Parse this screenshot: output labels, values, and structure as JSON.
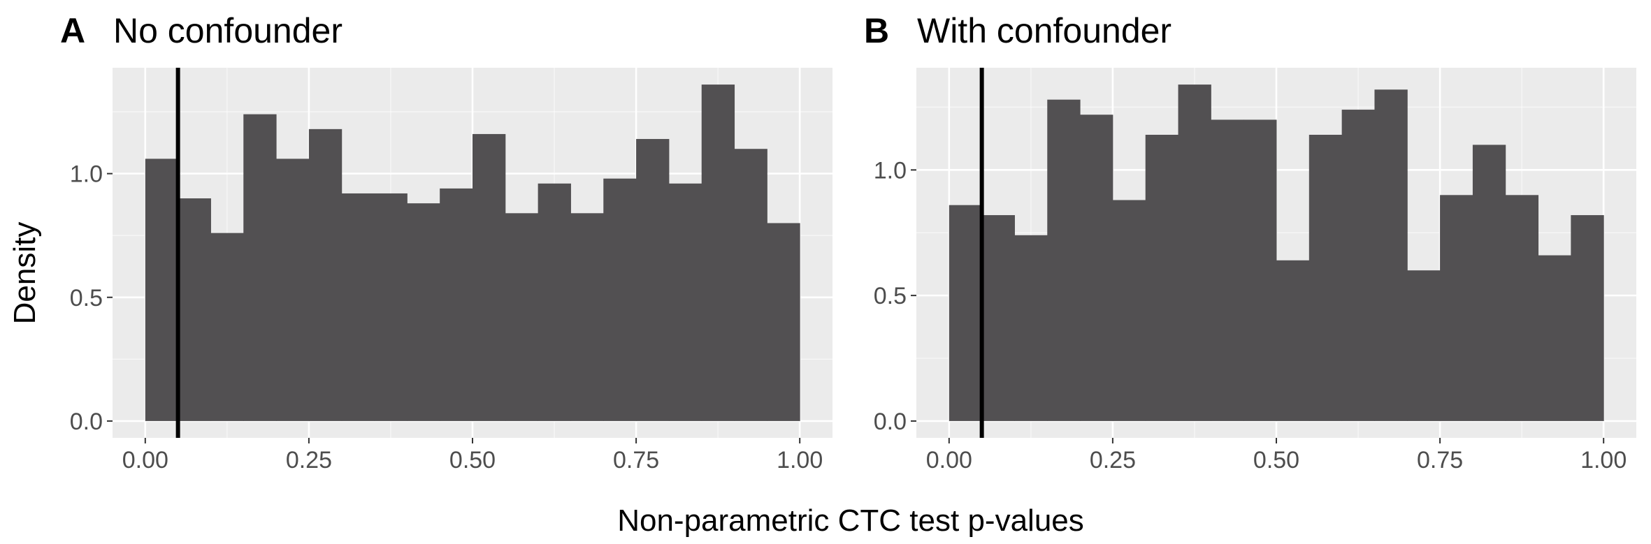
{
  "colors": {
    "panel_background": "#ebebeb",
    "grid_major": "#ffffff",
    "bar_fill": "#525052",
    "reference_line": "#000000",
    "tick_label": "#4d4d4d"
  },
  "xlabel": "Non-parametric CTC test p-values",
  "ylabel": "Density",
  "chart_data": [
    {
      "type": "bar",
      "panel": "A",
      "title": "No confounder",
      "bin_width": 0.05,
      "bin_starts": [
        0.0,
        0.05,
        0.1,
        0.15,
        0.2,
        0.25,
        0.3,
        0.35,
        0.4,
        0.45,
        0.5,
        0.55,
        0.6,
        0.65,
        0.7,
        0.75,
        0.8,
        0.85,
        0.9,
        0.95
      ],
      "values": [
        1.06,
        0.9,
        0.76,
        1.24,
        1.06,
        1.18,
        0.92,
        0.92,
        0.88,
        0.94,
        1.16,
        0.84,
        0.96,
        0.84,
        0.98,
        1.14,
        0.96,
        1.36,
        1.1,
        0.8
      ],
      "reference_line_x": 0.05,
      "xlim": [
        -0.05,
        1.05
      ],
      "ylim": [
        -0.068,
        1.428
      ],
      "x_ticks": [
        0.0,
        0.25,
        0.5,
        0.75,
        1.0
      ],
      "x_tick_labels": [
        "0.00",
        "0.25",
        "0.50",
        "0.75",
        "1.00"
      ],
      "y_ticks": [
        0.0,
        0.5,
        1.0
      ],
      "y_tick_labels": [
        "0.0",
        "0.5",
        "1.0"
      ],
      "grid": true
    },
    {
      "type": "bar",
      "panel": "B",
      "title": "With confounder",
      "bin_width": 0.05,
      "bin_starts": [
        0.0,
        0.05,
        0.1,
        0.15,
        0.2,
        0.25,
        0.3,
        0.35,
        0.4,
        0.45,
        0.5,
        0.55,
        0.6,
        0.65,
        0.7,
        0.75,
        0.8,
        0.85,
        0.9,
        0.95
      ],
      "values": [
        0.86,
        0.82,
        0.74,
        1.28,
        1.22,
        0.88,
        1.14,
        1.34,
        1.2,
        1.2,
        0.64,
        1.14,
        1.24,
        1.32,
        0.6,
        0.9,
        1.1,
        0.9,
        0.66,
        0.82
      ],
      "reference_line_x": 0.05,
      "xlim": [
        -0.05,
        1.05
      ],
      "ylim": [
        -0.067,
        1.407
      ],
      "x_ticks": [
        0.0,
        0.25,
        0.5,
        0.75,
        1.0
      ],
      "x_tick_labels": [
        "0.00",
        "0.25",
        "0.50",
        "0.75",
        "1.00"
      ],
      "y_ticks": [
        0.0,
        0.5,
        1.0
      ],
      "y_tick_labels": [
        "0.0",
        "0.5",
        "1.0"
      ],
      "grid": true
    }
  ]
}
